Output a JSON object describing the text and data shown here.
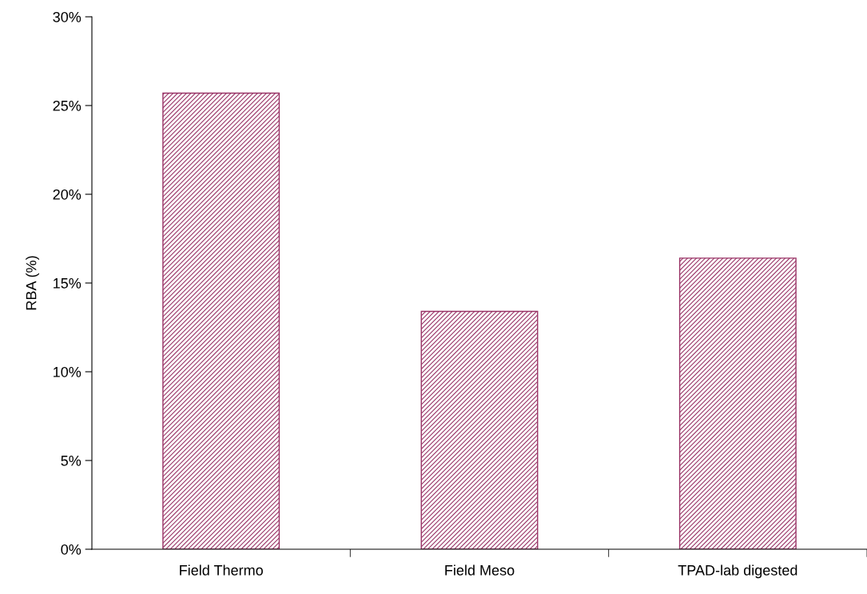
{
  "chart_data": {
    "type": "bar",
    "ylabel": "RBA (%)",
    "categories": [
      "Field Thermo",
      "Field Meso",
      "TPAD-lab digested"
    ],
    "values": [
      25.7,
      13.4,
      16.4
    ],
    "color": "#993366",
    "ylim": [
      0,
      30
    ],
    "yticks": [
      {
        "value": 0,
        "label": "0%"
      },
      {
        "value": 5,
        "label": "5%"
      },
      {
        "value": 10,
        "label": "10%"
      },
      {
        "value": 15,
        "label": "15%"
      },
      {
        "value": 20,
        "label": "20%"
      },
      {
        "value": 25,
        "label": "25%"
      },
      {
        "value": 30,
        "label": "30%"
      }
    ],
    "grid": false,
    "legend": false
  }
}
